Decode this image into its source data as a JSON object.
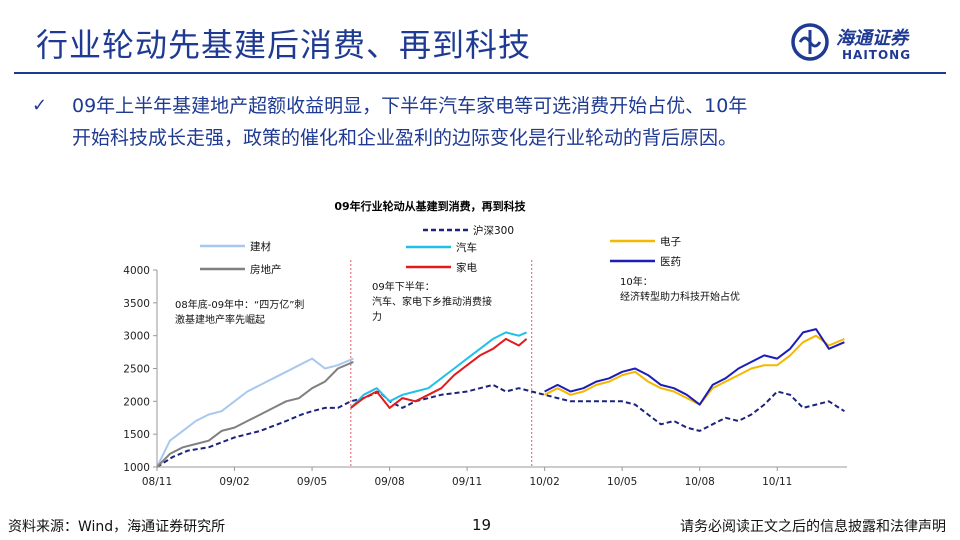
{
  "header": {
    "title": "行业轮动先基建后消费、再到科技",
    "logo_cn": "海通证券",
    "logo_en": "HAITONG",
    "logo_icon": "haitong-logo-icon"
  },
  "bullet": {
    "icon": "check-icon",
    "line1": "09年上半年基建地产超额收益明显，下半年汽车家电等可选消费开始占优、10年",
    "line2": "开始科技成长走强，政策的催化和企业盈利的边际变化是行业轮动的背后原因。"
  },
  "footer": {
    "source": "资料来源：Wind，海通证券研究所",
    "page": "19",
    "note": "请务必阅读正文之后的信息披露和法律声明"
  },
  "colors": {
    "brand": "#1f3a93",
    "hs300": "#1a237e",
    "jiancai": "#a8c8ee",
    "fangdichan": "#808080",
    "qiche": "#22c0e8",
    "jiadian": "#e21b1b",
    "dianzi": "#f5b800",
    "yiyao": "#1d1db5",
    "divider": "#e06060"
  },
  "chart_data": {
    "type": "line",
    "title": "09年行业轮动从基建到消费，再到科技",
    "xlabel": "",
    "ylabel": "",
    "ylim": [
      1000,
      4000
    ],
    "yticks": [
      1000,
      1500,
      2000,
      2500,
      3000,
      3500,
      4000
    ],
    "x_tick_labels": [
      "08/11",
      "09/02",
      "09/05",
      "09/08",
      "09/11",
      "10/02",
      "10/05",
      "10/08",
      "10/11"
    ],
    "x_tick_months": [
      0,
      3,
      6,
      9,
      12,
      15,
      18,
      21,
      24
    ],
    "xlim_months": [
      0,
      26.7
    ],
    "grid": false,
    "phase_dividers_month": [
      7.5,
      14.5
    ],
    "legend": [
      {
        "name": "沪深300",
        "key": "hs300"
      },
      {
        "name": "建材",
        "key": "jiancai"
      },
      {
        "name": "房地产",
        "key": "fangdichan"
      },
      {
        "name": "汽车",
        "key": "qiche"
      },
      {
        "name": "家电",
        "key": "jiadian"
      },
      {
        "name": "电子",
        "key": "dianzi"
      },
      {
        "name": "医药",
        "key": "yiyao"
      }
    ],
    "annotations": [
      {
        "lines": [
          "08年底-09年中：“四万亿”刺",
          "激基建地产率先崛起"
        ],
        "phase": 1
      },
      {
        "lines": [
          "09年下半年：",
          "汽车、家电下乡推动消费接",
          "力"
        ],
        "phase": 2
      },
      {
        "lines": [
          "10年：",
          "经济转型助力科技开始占优"
        ],
        "phase": 3
      }
    ],
    "series": [
      {
        "name": "沪深300",
        "key": "hs300",
        "dashed": true,
        "x": [
          0,
          0.6,
          1.2,
          2,
          3,
          4,
          5,
          5.6,
          6,
          6.5,
          7,
          7.5,
          8,
          8.6,
          9,
          9.5,
          10,
          10.5,
          11,
          12,
          12.5,
          13,
          13.5,
          14,
          14.5,
          15,
          15.5,
          16,
          17,
          18,
          18.5,
          19,
          19.5,
          20,
          20.5,
          21,
          21.5,
          22,
          22.5,
          23,
          23.5,
          24,
          24.5,
          25,
          25.5,
          26,
          26.6
        ],
        "y": [
          1000,
          1150,
          1250,
          1300,
          1450,
          1550,
          1700,
          1800,
          1850,
          1900,
          1900,
          2000,
          2050,
          2150,
          2000,
          1900,
          2000,
          2050,
          2100,
          2150,
          2200,
          2250,
          2150,
          2200,
          2150,
          2100,
          2050,
          2000,
          2000,
          2000,
          1950,
          1800,
          1650,
          1700,
          1600,
          1550,
          1650,
          1750,
          1700,
          1800,
          1950,
          2150,
          2100,
          1900,
          1950,
          2000,
          1850
        ]
      },
      {
        "name": "建材",
        "key": "jiancai",
        "dashed": false,
        "x": [
          0,
          0.5,
          1,
          1.5,
          2,
          2.5,
          3,
          3.5,
          4,
          4.5,
          5,
          5.5,
          6,
          6.5,
          7,
          7.6
        ],
        "y": [
          1000,
          1400,
          1550,
          1700,
          1800,
          1850,
          2000,
          2150,
          2250,
          2350,
          2450,
          2550,
          2650,
          2500,
          2550,
          2650
        ]
      },
      {
        "name": "房地产",
        "key": "fangdichan",
        "dashed": false,
        "x": [
          0,
          0.5,
          1,
          1.5,
          2,
          2.5,
          3,
          3.5,
          4,
          4.5,
          5,
          5.5,
          6,
          6.5,
          7,
          7.6
        ],
        "y": [
          1000,
          1200,
          1300,
          1350,
          1400,
          1550,
          1600,
          1700,
          1800,
          1900,
          2000,
          2050,
          2200,
          2300,
          2500,
          2600
        ]
      },
      {
        "name": "汽车",
        "key": "qiche",
        "dashed": false,
        "x": [
          7.5,
          8,
          8.5,
          9,
          9.5,
          10,
          10.5,
          11,
          11.5,
          12,
          12.5,
          13,
          13.5,
          14,
          14.3
        ],
        "y": [
          1900,
          2100,
          2200,
          2000,
          2100,
          2150,
          2200,
          2350,
          2500,
          2650,
          2800,
          2950,
          3050,
          3000,
          3050
        ]
      },
      {
        "name": "家电",
        "key": "jiadian",
        "dashed": false,
        "x": [
          7.5,
          8,
          8.5,
          9,
          9.5,
          10,
          10.5,
          11,
          11.5,
          12,
          12.5,
          13,
          13.5,
          14,
          14.3
        ],
        "y": [
          1900,
          2050,
          2150,
          1900,
          2050,
          2000,
          2100,
          2200,
          2400,
          2550,
          2700,
          2800,
          2950,
          2850,
          2950
        ]
      },
      {
        "name": "电子",
        "key": "dianzi",
        "dashed": false,
        "x": [
          15,
          15.5,
          16,
          16.5,
          17,
          17.5,
          18,
          18.5,
          19,
          19.5,
          20,
          20.5,
          21,
          21.5,
          22,
          22.5,
          23,
          23.5,
          24,
          24.5,
          25,
          25.5,
          26,
          26.6
        ],
        "y": [
          2100,
          2200,
          2100,
          2150,
          2250,
          2300,
          2400,
          2450,
          2300,
          2200,
          2150,
          2050,
          1950,
          2200,
          2300,
          2400,
          2500,
          2550,
          2550,
          2700,
          2900,
          3000,
          2850,
          2950
        ]
      },
      {
        "name": "医药",
        "key": "yiyao",
        "dashed": false,
        "x": [
          15,
          15.5,
          16,
          16.5,
          17,
          17.5,
          18,
          18.5,
          19,
          19.5,
          20,
          20.5,
          21,
          21.5,
          22,
          22.5,
          23,
          23.5,
          24,
          24.5,
          25,
          25.5,
          26,
          26.6
        ],
        "y": [
          2150,
          2250,
          2150,
          2200,
          2300,
          2350,
          2450,
          2500,
          2400,
          2250,
          2200,
          2100,
          1950,
          2250,
          2350,
          2500,
          2600,
          2700,
          2650,
          2800,
          3050,
          3100,
          2800,
          2900
        ]
      }
    ]
  }
}
